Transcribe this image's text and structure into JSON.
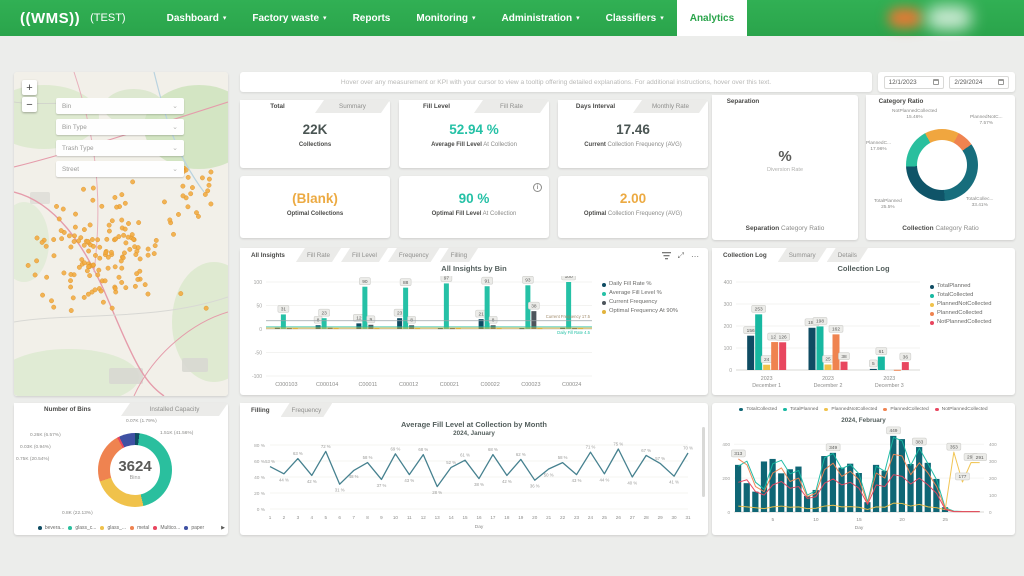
{
  "nav": {
    "logo": "((WMS))",
    "env_label": "(TEST)",
    "items": [
      {
        "id": "dashboard",
        "label": "Dashboard",
        "caret": true,
        "active": false
      },
      {
        "id": "factory-waste",
        "label": "Factory waste",
        "caret": true,
        "active": false
      },
      {
        "id": "reports",
        "label": "Reports",
        "caret": false,
        "active": false
      },
      {
        "id": "monitoring",
        "label": "Monitoring",
        "caret": true,
        "active": false
      },
      {
        "id": "administration",
        "label": "Administration",
        "caret": true,
        "active": false
      },
      {
        "id": "classifiers",
        "label": "Classifiers",
        "caret": true,
        "active": false
      },
      {
        "id": "analytics",
        "label": "Analytics",
        "caret": false,
        "active": true
      }
    ]
  },
  "toolbar": {
    "instruction": "Hover over any measurement or KPI with your cursor to view a tooltip offering detailed explanations. For additional instructions, hover over this text.",
    "date_from": "12/1/2023",
    "date_to": "2/29/2024"
  },
  "map": {
    "zoom_in": "+",
    "zoom_out": "−",
    "filters": [
      {
        "label": "Bin"
      },
      {
        "label": "Bin Type"
      },
      {
        "label": "Trash Type"
      },
      {
        "label": "Street"
      }
    ],
    "marker_color": "#f3ab3f"
  },
  "kpi_cards": [
    {
      "tabs": [
        "Total",
        "Summary"
      ],
      "value": "22K",
      "label_bold": "Collections",
      "label_rest": "",
      "value_color": "#4a5553"
    },
    {
      "tabs": [
        "Fill Level",
        "Fill Rate"
      ],
      "value": "52.94 %",
      "label_bold": "Average Fill Level",
      "label_rest": "At Collection",
      "value_color": "#25c1a6"
    },
    {
      "tabs": [
        "Days Interval",
        "Monthly Rate"
      ],
      "value": "17.46",
      "label_bold": "Current",
      "label_rest": "Collection Frequency (AVG)",
      "value_color": "#4a5553"
    },
    {
      "tabs": [],
      "value": "(Blank)",
      "label_bold": "Optimal Collections",
      "label_rest": "",
      "value_color": "#ecaa42"
    },
    {
      "tabs": [],
      "value": "90 %",
      "label_bold": "Optimal Fill Level",
      "label_rest": "At Collection",
      "value_color": "#25c1a6",
      "info": "i"
    },
    {
      "tabs": [],
      "value": "2.00",
      "label_bold": "Optimal",
      "label_rest": "Collection Frequency (AVG)",
      "value_color": "#ecaa42"
    }
  ],
  "separation_card": {
    "tab": "Separation",
    "value": "%",
    "sublabel": "Diversion Rate",
    "footer_bold": "Separation",
    "footer_rest": "Category Ratio"
  },
  "category_ratio_card": {
    "tab": "Category Ratio",
    "footer_bold": "Collection",
    "footer_rest": "Category Ratio"
  },
  "chart_data": [
    {
      "id": "all-insights",
      "type": "bar",
      "title": "All Insights by Bin",
      "tabs": [
        "All Insights",
        "Fill Rate",
        "Fill Level",
        "Frequency",
        "Filling"
      ],
      "categories": [
        "C000103",
        "C000104",
        "C00011",
        "C00012",
        "C00021",
        "C00022",
        "C00023",
        "C00024"
      ],
      "series": [
        {
          "name": "Daily Fill Rate %",
          "color": "#0f4c63",
          "values": [
            3,
            8,
            12,
            23,
            2,
            21,
            2,
            3
          ]
        },
        {
          "name": "Average Fill Level %",
          "color": "#25c1a6",
          "values": [
            31,
            23,
            90,
            88,
            97,
            91,
            93,
            100
          ]
        },
        {
          "name": "Current Frequency",
          "color": "#4d555c",
          "values": [
            2,
            3,
            9,
            8,
            2,
            8,
            38,
            2
          ]
        },
        {
          "name": "Optimal Frequency At 90%",
          "color": "#e2b33c",
          "values": [
            2,
            2,
            2,
            2,
            2,
            2,
            2,
            2
          ]
        }
      ],
      "ylim": [
        -100,
        100
      ],
      "yticks": [
        100,
        50,
        0,
        -50,
        -100
      ],
      "ref_lines": [
        {
          "label": "Current Frequency 17.5",
          "value": 17.5,
          "color": "#9aa3a8"
        },
        {
          "label": "Daily Fill Rate 4.5",
          "value": 4.5,
          "color": "#25c1a6"
        },
        {
          "label": "",
          "value": 2,
          "color": "#e2b33c"
        }
      ]
    },
    {
      "id": "collection-log",
      "type": "bar",
      "title": "Collection Log",
      "tabs": [
        "Collection Log",
        "Summary",
        "Details"
      ],
      "year_label": "2023",
      "categories": [
        "December 1",
        "December 2",
        "December 3"
      ],
      "series": [
        {
          "name": "TotalPlanned",
          "color": "#0f4c63",
          "values": [
            156,
            192,
            5
          ]
        },
        {
          "name": "TotalCollected",
          "color": "#17b8a1",
          "values": [
            253,
            198,
            61
          ]
        },
        {
          "name": "PlannedNotCollected",
          "color": "#f0c24b",
          "values": [
            24,
            25,
            0
          ]
        },
        {
          "name": "PlannedCollected",
          "color": "#ef8350",
          "values": [
            127,
            162,
            1
          ]
        },
        {
          "name": "NotPlannedCollected",
          "color": "#e8465f",
          "values": [
            126,
            38,
            36
          ]
        }
      ],
      "ylim": [
        0,
        400
      ],
      "yticks": [
        400,
        300,
        200,
        100,
        0
      ]
    },
    {
      "id": "number-of-bins",
      "type": "pie",
      "tabs": [
        "Number of Bins",
        "Installed Capacity"
      ],
      "center_value": "3624",
      "center_label": "Bins",
      "slices": [
        {
          "name": "bevera...",
          "color": "#0f4c63",
          "pct": 1.79,
          "label": "0.07K (1.79%)"
        },
        {
          "name": "glass_c...",
          "color": "#2abf9e",
          "pct": 41.56,
          "label": "1.51K (41.56%)"
        },
        {
          "name": "glass_...",
          "color": "#f0c24b",
          "pct": 22.13,
          "label": "0.8K (22.13%)"
        },
        {
          "name": "metal",
          "color": "#ef8350",
          "pct": 20.54,
          "label": "0.75K (20.54%)"
        },
        {
          "name": "Multico...",
          "color": "#e8465f",
          "pct": 0.94,
          "label": "0.03K (0.94%)"
        },
        {
          "name": "paper",
          "color": "#3f51a3",
          "pct": 6.57,
          "label": "0.26K (6.57%)"
        }
      ],
      "legend_more": "▶"
    },
    {
      "id": "fill-by-day",
      "type": "line",
      "tabs": [
        "Filling",
        "Frequency"
      ],
      "title": "Average Fill Level at Collection by Month",
      "subtitle": "2024, January",
      "xlabel": "Day",
      "x": [
        1,
        2,
        3,
        4,
        5,
        6,
        7,
        8,
        9,
        10,
        11,
        12,
        13,
        14,
        15,
        16,
        17,
        18,
        19,
        20,
        21,
        22,
        23,
        24,
        25,
        26,
        27,
        28,
        29,
        30,
        31
      ],
      "values": [
        53,
        44,
        63,
        42,
        72,
        31,
        48,
        58,
        37,
        69,
        43,
        68,
        28,
        52,
        61,
        38,
        68,
        42,
        62,
        36,
        50,
        58,
        43,
        71,
        44,
        75,
        40,
        67,
        57,
        41,
        70
      ],
      "color": "#46818f",
      "ylim": [
        0,
        80
      ],
      "yticks": [
        "80 %",
        "60 %",
        "40 %",
        "20 %",
        "0 %"
      ]
    },
    {
      "id": "feb-collection",
      "type": "combo",
      "title": "2024, February",
      "xlabel": "Day",
      "xticks": [
        5,
        10,
        15,
        20,
        25
      ],
      "yticks_left": [
        400,
        200,
        0
      ],
      "yticks_right": [
        400,
        300,
        200,
        100,
        0
      ],
      "ylim": [
        0,
        460
      ],
      "legend": [
        {
          "name": "TotalCollected",
          "color": "#0f6675"
        },
        {
          "name": "TotalPlanned",
          "color": "#17b8a1"
        },
        {
          "name": "PlannedNotCollected",
          "color": "#f0c24b"
        },
        {
          "name": "PlannedCollected",
          "color": "#ef8350"
        },
        {
          "name": "NotPlannedCollected",
          "color": "#e8465f"
        }
      ],
      "bar_series": {
        "name": "TotalCollected",
        "color": "#0f6675",
        "values": [
          278,
          170,
          120,
          298,
          313,
          228,
          252,
          268,
          95,
          130,
          330,
          349,
          262,
          285,
          230,
          58,
          278,
          243,
          449,
          430,
          283,
          383,
          290,
          195,
          28,
          0,
          0,
          0,
          0
        ]
      },
      "line_series": [
        {
          "name": "TotalPlanned",
          "color": "#17b8a1",
          "values": [
            270,
            300,
            175,
            135,
            285,
            305,
            225,
            245,
            100,
            125,
            320,
            345,
            255,
            280,
            225,
            60,
            270,
            240,
            440,
            420,
            275,
            375,
            285,
            190,
            25,
            5,
            3,
            3,
            3
          ]
        },
        {
          "name": "PlannedNotCollected",
          "color": "#f0c24b",
          "values": [
            35,
            30,
            25,
            20,
            30,
            35,
            28,
            30,
            20,
            22,
            35,
            40,
            30,
            32,
            28,
            15,
            30,
            28,
            52,
            50,
            35,
            45,
            30,
            25,
            14,
            353,
            177,
            292,
            291
          ]
        },
        {
          "name": "PlannedCollected",
          "color": "#ef8350",
          "values": [
            313,
            278,
            150,
            120,
            230,
            260,
            180,
            200,
            90,
            110,
            250,
            288,
            210,
            240,
            190,
            50,
            230,
            200,
            340,
            330,
            220,
            290,
            230,
            150,
            20,
            3,
            2,
            2,
            2
          ]
        },
        {
          "name": "NotPlannedCollected",
          "color": "#e8465f",
          "values": [
            175,
            190,
            120,
            100,
            160,
            180,
            140,
            150,
            80,
            90,
            170,
            195,
            160,
            175,
            140,
            45,
            160,
            150,
            220,
            210,
            165,
            200,
            160,
            110,
            15,
            2,
            2,
            2,
            2
          ]
        }
      ],
      "annotations": [
        {
          "day": 1,
          "value": 313,
          "text": "313"
        },
        {
          "day": 12,
          "value": 349,
          "text": "349"
        },
        {
          "day": 19,
          "value": 449,
          "text": "449"
        },
        {
          "day": 22,
          "value": 383,
          "text": "383"
        },
        {
          "day": 26,
          "value": 353,
          "text": "353"
        },
        {
          "day": 27,
          "value": 177,
          "text": "177"
        },
        {
          "day": 28,
          "value": 292,
          "text": "292"
        },
        {
          "day": 29,
          "value": 291,
          "text": "291"
        }
      ]
    },
    {
      "id": "collection-category-ratio",
      "type": "pie",
      "slices": [
        {
          "name": "NotPlannedCollected",
          "pct_label": "15.46%",
          "color": "#f0a63f",
          "pct": 15.46
        },
        {
          "name": "PlannedNotC...",
          "pct_label": "7.57%",
          "color": "#ef8350",
          "pct": 7.57
        },
        {
          "name": "TotalCollec...",
          "pct_label": "33.41%",
          "color": "#176d7c",
          "pct": 33.41
        },
        {
          "name": "TotalPlanned",
          "pct_label": "25.5%",
          "color": "#0f5468",
          "pct": 25.5
        },
        {
          "name": "PlannedC...",
          "pct_label": "17.96%",
          "color": "#2abf9e",
          "pct": 17.96
        }
      ]
    }
  ]
}
